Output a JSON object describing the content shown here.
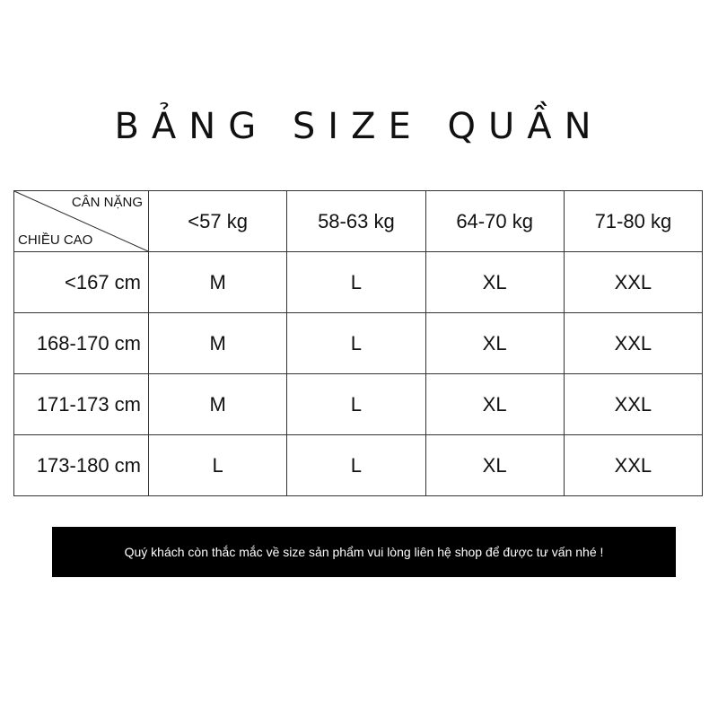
{
  "title": "BẢNG SIZE QUẦN",
  "table": {
    "corner_top": "CÂN NẶNG",
    "corner_bottom": "CHIỀU CAO",
    "columns": [
      "<57 kg",
      "58-63 kg",
      "64-70 kg",
      "71-80 kg"
    ],
    "rows": [
      {
        "height": "<167  cm",
        "sizes": [
          "M",
          "L",
          "XL",
          "XXL"
        ]
      },
      {
        "height": "168-170 cm",
        "sizes": [
          "M",
          "L",
          "XL",
          "XXL"
        ]
      },
      {
        "height": "171-173 cm",
        "sizes": [
          "M",
          "L",
          "XL",
          "XXL"
        ]
      },
      {
        "height": "173-180 cm",
        "sizes": [
          "L",
          "L",
          "XL",
          "XXL"
        ]
      }
    ]
  },
  "banner": "Quý khách còn thắc mắc về size sản phẩm vui lòng liên hệ shop để được tư vấn nhé !"
}
